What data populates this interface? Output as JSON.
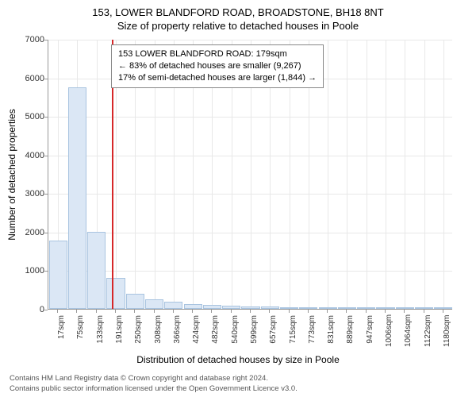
{
  "chart": {
    "type": "histogram",
    "title": "153, LOWER BLANDFORD ROAD, BROADSTONE, BH18 8NT",
    "subtitle": "Size of property relative to detached houses in Poole",
    "y_axis_label": "Number of detached properties",
    "x_axis_label": "Distribution of detached houses by size in Poole",
    "ylim": [
      0,
      7000
    ],
    "ytick_step": 1000,
    "yticks": [
      0,
      1000,
      2000,
      3000,
      4000,
      5000,
      6000,
      7000
    ],
    "x_categories": [
      "17sqm",
      "75sqm",
      "133sqm",
      "191sqm",
      "250sqm",
      "308sqm",
      "366sqm",
      "424sqm",
      "482sqm",
      "540sqm",
      "599sqm",
      "657sqm",
      "715sqm",
      "773sqm",
      "831sqm",
      "889sqm",
      "947sqm",
      "1006sqm",
      "1064sqm",
      "1122sqm",
      "1180sqm"
    ],
    "bar_values": [
      1780,
      5750,
      2000,
      800,
      400,
      250,
      180,
      130,
      100,
      80,
      70,
      60,
      50,
      10,
      8,
      6,
      5,
      4,
      3,
      2,
      1
    ],
    "bar_fill_color": "#dbe7f5",
    "bar_border_color": "#a9c4e0",
    "reference_line_index": 2.8,
    "reference_line_color": "#d62728",
    "background_color": "#ffffff",
    "grid_color": "#e8e8e8",
    "axis_color": "#999999",
    "title_fontsize": 13,
    "subtitle_fontsize": 13,
    "tick_fontsize": 11,
    "label_fontsize": 12,
    "info_box": {
      "line1": "153 LOWER BLANDFORD ROAD: 179sqm",
      "line2": "← 83% of detached houses are smaller (9,267)",
      "line3": "17% of semi-detached houses are larger (1,844) →"
    },
    "footer": {
      "line1": "Contains HM Land Registry data © Crown copyright and database right 2024.",
      "line2": "Contains public sector information licensed under the Open Government Licence v3.0."
    }
  }
}
